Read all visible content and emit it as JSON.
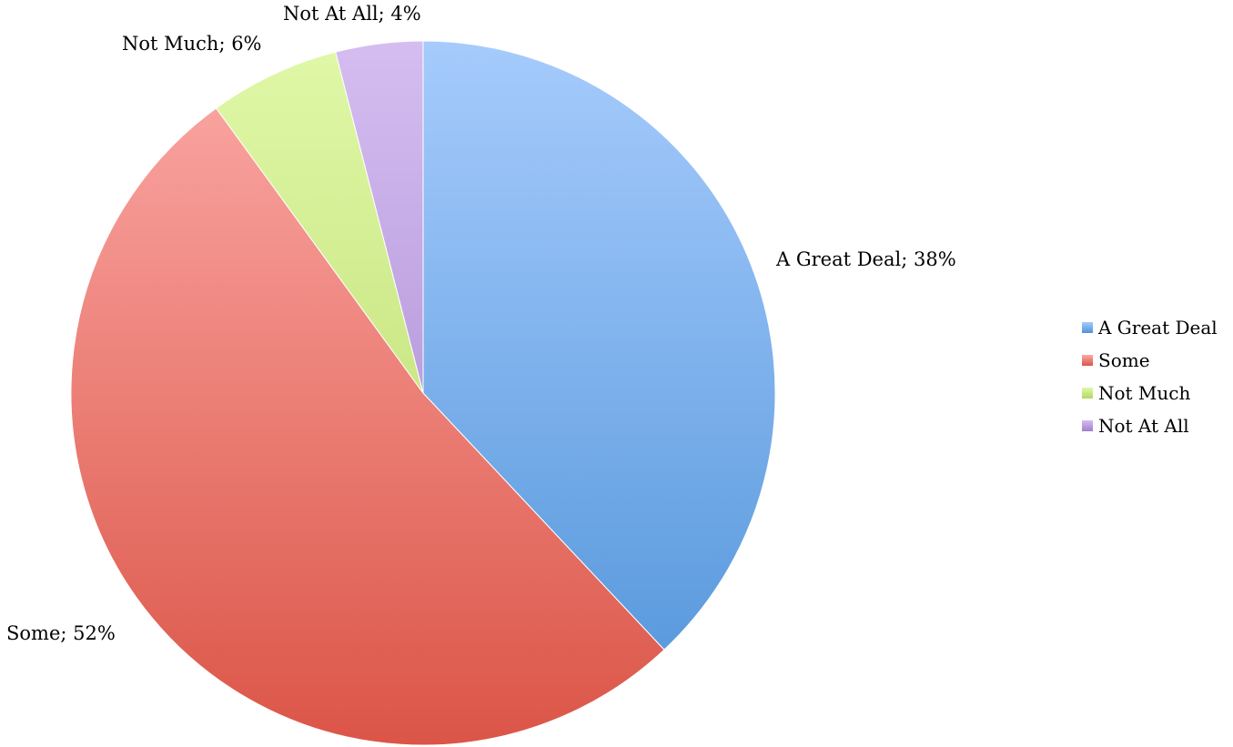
{
  "chart_data": {
    "type": "pie",
    "title": "",
    "start_angle_deg": 0,
    "direction": "clockwise",
    "slices": [
      {
        "label": "A Great Deal",
        "value": 38,
        "data_label": "A Great Deal; 38%",
        "color_top": "#a6cbfc",
        "color_bottom": "#4f93d9"
      },
      {
        "label": "Some",
        "value": 52,
        "data_label": "Some; 52%",
        "color_top": "#fcaaa7",
        "color_bottom": "#db5547"
      },
      {
        "label": "Not Much",
        "value": 6,
        "data_label": "Not Much; 6%",
        "color_top": "#e0f8a8",
        "color_bottom": "#b5d763"
      },
      {
        "label": "Not At All",
        "value": 4,
        "data_label": "Not At All; 4%",
        "color_top": "#d5bdf0",
        "color_bottom": "#9f7fcc"
      }
    ],
    "legend": {
      "position": "right",
      "entries": [
        "A Great Deal",
        "Some",
        "Not Much",
        "Not At All"
      ]
    }
  }
}
